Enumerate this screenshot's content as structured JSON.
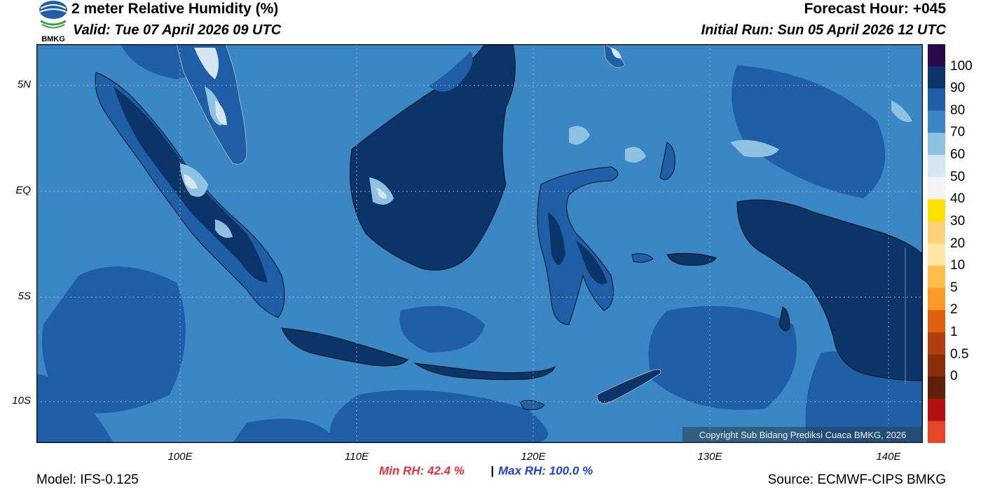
{
  "header": {
    "title": "2 meter Relative Humidity (%)",
    "valid": "Valid: Tue 07 April 2026 09 UTC",
    "forecast_hour": "Forecast Hour: +045",
    "initial_run": "Initial Run: Sun 05 April 2026 12 UTC",
    "logo_text": "BMKG"
  },
  "axes": {
    "lat_labels": [
      "5N",
      "EQ",
      "5S",
      "10S"
    ],
    "lon_labels": [
      "100E",
      "110E",
      "120E",
      "130E",
      "140E"
    ]
  },
  "colorbar": {
    "labels": [
      "100",
      "90",
      "80",
      "70",
      "60",
      "50",
      "40",
      "30",
      "20",
      "10",
      "5",
      "2",
      "1",
      "0.5",
      "0"
    ],
    "colors": [
      "#2a0a4a",
      "#0b3468",
      "#1f5fa8",
      "#3a87c6",
      "#8fc1e0",
      "#d4e6f1",
      "#f4f4f4",
      "#ffe100",
      "#ffd27a",
      "#ffe7a6",
      "#ffbe4a",
      "#ff9a2a",
      "#e06010",
      "#b04010",
      "#8a2e0a",
      "#5e1e0a",
      "#b31010",
      "#e8452a"
    ]
  },
  "stats": {
    "min_label": "Min RH:  42.4 %",
    "separator": "|",
    "max_label": "Max RH: 100.0 %",
    "min_color": "#e8303a",
    "max_color": "#2040d8"
  },
  "footer": {
    "model": "Model: IFS-0.125",
    "source": "Source: ECMWF-CIPS BMKG",
    "copyright": "Copyright Sub Bidang Prediksi Cuaca BMKG, 2026"
  },
  "map_colors": {
    "ocean": "#3a87c6",
    "humid": "#1f5fa8",
    "very_humid": "#0b3468",
    "dry": "#8fc1e0",
    "driest": "#d4e6f1"
  }
}
